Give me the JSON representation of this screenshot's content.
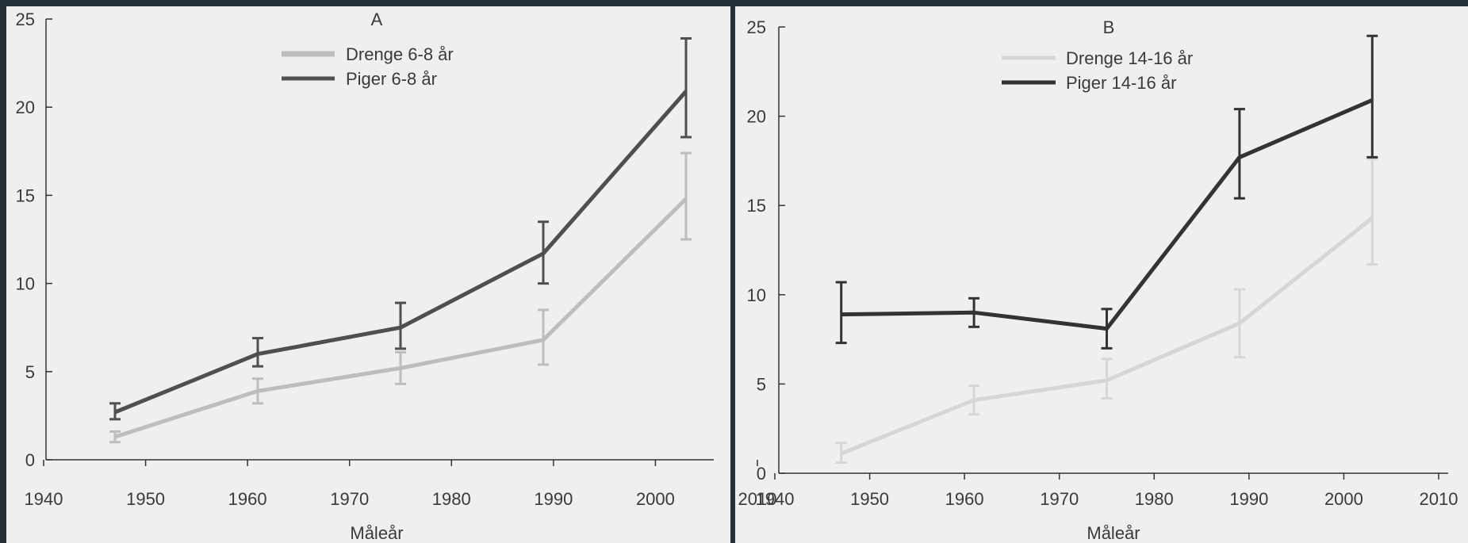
{
  "colors": {
    "frame": "#253038",
    "panel_bg": "#efefef",
    "axis": "#333333",
    "text": "#3a3a3a"
  },
  "chart_data": [
    {
      "type": "line",
      "title": "A",
      "xlabel": "Måleår",
      "ylabel": "",
      "xlim": [
        1940,
        2010
      ],
      "ylim": [
        0,
        25
      ],
      "xticks": [
        1940,
        1950,
        1960,
        1970,
        1980,
        1990,
        2000,
        2010
      ],
      "yticks": [
        0,
        5,
        10,
        15,
        20,
        25
      ],
      "legend_position": "top-center",
      "series": [
        {
          "name": "Drenge 6-8 år",
          "color": "#bdbdbd",
          "x": [
            1947,
            1961,
            1975,
            1989,
            2003
          ],
          "y": [
            1.3,
            3.9,
            5.2,
            6.8,
            14.8
          ],
          "err_low": [
            1.0,
            3.2,
            4.3,
            5.4,
            12.5
          ],
          "err_high": [
            1.6,
            4.6,
            6.1,
            8.5,
            17.4
          ]
        },
        {
          "name": "Piger 6-8 år",
          "color": "#4f4f4f",
          "x": [
            1947,
            1961,
            1975,
            1989,
            2003
          ],
          "y": [
            2.7,
            6.0,
            7.5,
            11.7,
            20.9
          ],
          "err_low": [
            2.3,
            5.3,
            6.3,
            10.0,
            18.3
          ],
          "err_high": [
            3.2,
            6.9,
            8.9,
            13.5,
            23.9
          ]
        }
      ]
    },
    {
      "type": "line",
      "title": "B",
      "xlabel": "Måleår",
      "ylabel": "",
      "xlim": [
        1940,
        2010
      ],
      "ylim": [
        0,
        25
      ],
      "xticks": [
        1940,
        1950,
        1960,
        1970,
        1980,
        1990,
        2000,
        2010
      ],
      "yticks": [
        0,
        5,
        10,
        15,
        20,
        25
      ],
      "legend_position": "top-center",
      "series": [
        {
          "name": "Drenge 14-16 år",
          "color": "#d6d6d6",
          "x": [
            1947,
            1961,
            1975,
            1989,
            2003
          ],
          "y": [
            1.1,
            4.1,
            5.2,
            8.4,
            14.3
          ],
          "err_low": [
            0.6,
            3.3,
            4.2,
            6.5,
            11.7
          ],
          "err_high": [
            1.7,
            4.9,
            6.4,
            10.3,
            17.6
          ]
        },
        {
          "name": "Piger 14-16 år",
          "color": "#333333",
          "x": [
            1947,
            1961,
            1975,
            1989,
            2003
          ],
          "y": [
            8.9,
            9.0,
            8.1,
            17.7,
            20.9
          ],
          "err_low": [
            7.3,
            8.2,
            7.0,
            15.4,
            17.7
          ],
          "err_high": [
            10.7,
            9.8,
            9.2,
            20.4,
            24.5
          ]
        }
      ]
    }
  ]
}
